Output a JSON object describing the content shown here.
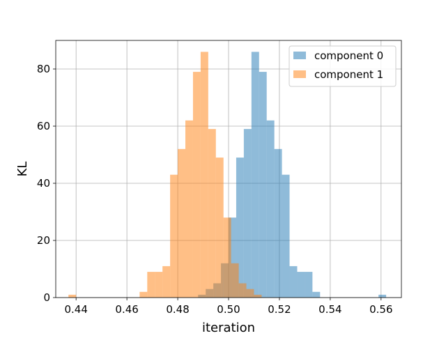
{
  "chart_data": {
    "type": "histogram",
    "xlabel": "iteration",
    "ylabel": "KL",
    "xlim": [
      0.432,
      0.568
    ],
    "ylim": [
      0,
      90
    ],
    "xticks": [
      0.44,
      0.46,
      0.48,
      0.5,
      0.52,
      0.54,
      0.56
    ],
    "xtick_labels": [
      "0.44",
      "0.46",
      "0.48",
      "0.50",
      "0.52",
      "0.54",
      "0.56"
    ],
    "yticks": [
      0,
      20,
      40,
      60,
      80
    ],
    "ytick_labels": [
      "0",
      "20",
      "40",
      "60",
      "80"
    ],
    "grid": true,
    "legend_position": "top-right",
    "series": [
      {
        "name": "component 0",
        "color": "#1f77b4",
        "alpha": 0.5,
        "bin_width": 0.003,
        "bins": [
          {
            "x0": 0.488,
            "count": 1
          },
          {
            "x0": 0.491,
            "count": 3
          },
          {
            "x0": 0.494,
            "count": 5
          },
          {
            "x0": 0.497,
            "count": 12
          },
          {
            "x0": 0.5,
            "count": 28
          },
          {
            "x0": 0.503,
            "count": 49
          },
          {
            "x0": 0.506,
            "count": 59
          },
          {
            "x0": 0.509,
            "count": 86
          },
          {
            "x0": 0.512,
            "count": 79
          },
          {
            "x0": 0.515,
            "count": 62
          },
          {
            "x0": 0.518,
            "count": 52
          },
          {
            "x0": 0.521,
            "count": 43
          },
          {
            "x0": 0.524,
            "count": 11
          },
          {
            "x0": 0.527,
            "count": 9
          },
          {
            "x0": 0.53,
            "count": 9
          },
          {
            "x0": 0.533,
            "count": 2
          },
          {
            "x0": 0.559,
            "count": 1
          }
        ]
      },
      {
        "name": "component 1",
        "color": "#ff7f0e",
        "alpha": 0.5,
        "bin_width": 0.003,
        "bins": [
          {
            "x0": 0.437,
            "count": 1
          },
          {
            "x0": 0.465,
            "count": 2
          },
          {
            "x0": 0.468,
            "count": 9
          },
          {
            "x0": 0.471,
            "count": 9
          },
          {
            "x0": 0.474,
            "count": 11
          },
          {
            "x0": 0.477,
            "count": 43
          },
          {
            "x0": 0.48,
            "count": 52
          },
          {
            "x0": 0.483,
            "count": 62
          },
          {
            "x0": 0.486,
            "count": 79
          },
          {
            "x0": 0.489,
            "count": 86
          },
          {
            "x0": 0.492,
            "count": 59
          },
          {
            "x0": 0.495,
            "count": 49
          },
          {
            "x0": 0.498,
            "count": 28
          },
          {
            "x0": 0.501,
            "count": 12
          },
          {
            "x0": 0.504,
            "count": 5
          },
          {
            "x0": 0.507,
            "count": 3
          },
          {
            "x0": 0.51,
            "count": 1
          }
        ]
      }
    ]
  }
}
